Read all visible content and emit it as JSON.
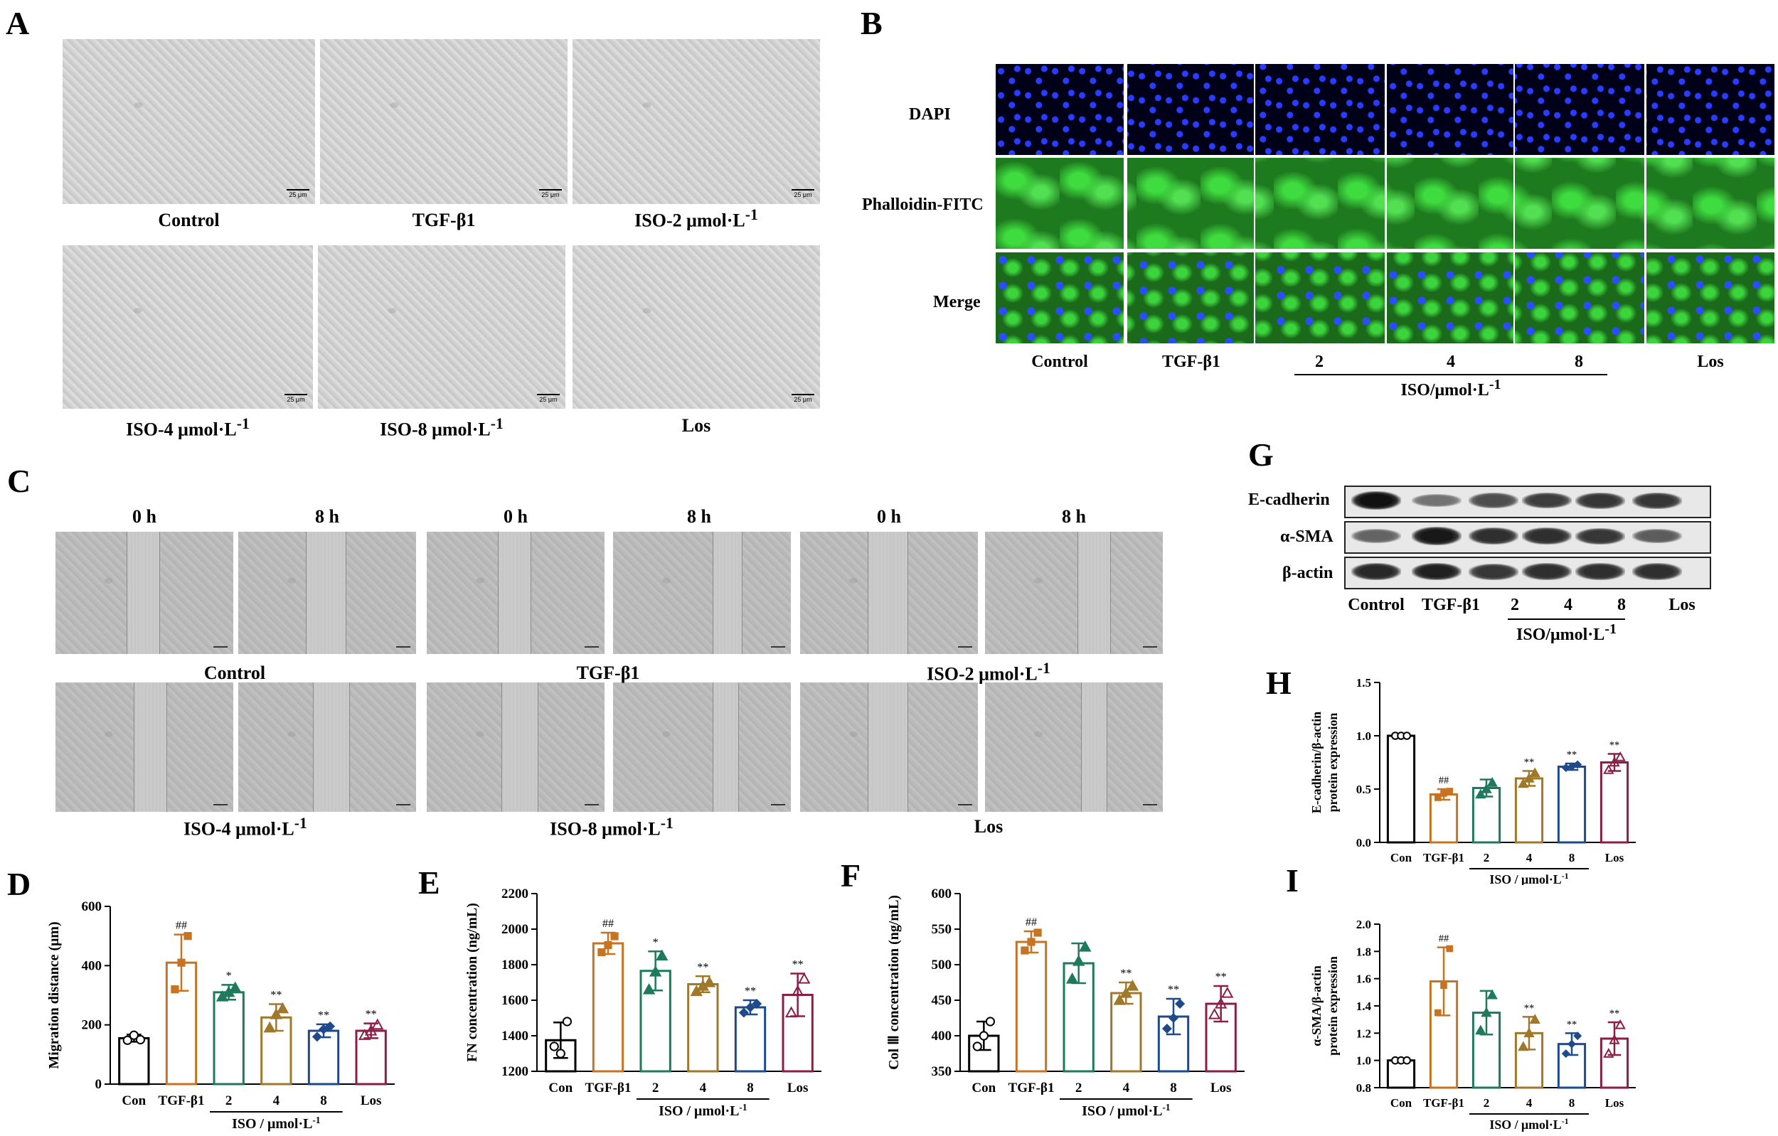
{
  "panels": {
    "A": "A",
    "B": "B",
    "C": "C",
    "D": "D",
    "E": "E",
    "F": "F",
    "G": "G",
    "H": "H",
    "I": "I"
  },
  "panelA": {
    "labels": [
      "Control",
      "TGF-β1",
      "ISO-2 μmol·L",
      "ISO-4 μmol·L",
      "ISO-8 μmol·L",
      "Los"
    ],
    "sup": "-1",
    "scalebar": "25 μm"
  },
  "panelB": {
    "rows": [
      "DAPI",
      "Phalloidin-FITC",
      "Merge"
    ],
    "cols": [
      "Control",
      "TGF-β1",
      "2",
      "4",
      "8",
      "Los"
    ],
    "group": "ISO/μmol·L",
    "sup": "-1"
  },
  "panelC": {
    "times": [
      "0 h",
      "8 h"
    ],
    "labels": [
      "Control",
      "TGF-β1",
      "ISO-2 μmol·L",
      "ISO-4 μmol·L",
      "ISO-8 μmol·L",
      "Los"
    ],
    "sup": "-1"
  },
  "panelG": {
    "proteins": [
      "E-cadherin",
      "α-SMA",
      "β-actin"
    ],
    "cols": [
      "Control",
      "TGF-β1",
      "2",
      "4",
      "8",
      "Los"
    ],
    "group": "ISO/μmol·L",
    "sup": "-1"
  },
  "colors": [
    "#000000",
    "#c87321",
    "#1e7a5a",
    "#a0782a",
    "#1e4a8c",
    "#8c1e46"
  ],
  "chart_data": [
    {
      "id": "D",
      "type": "bar",
      "categories": [
        "Con",
        "TGF-β1",
        "2",
        "4",
        "8",
        "Los"
      ],
      "values": [
        155,
        410,
        310,
        225,
        180,
        180
      ],
      "errors": [
        12,
        95,
        25,
        45,
        22,
        25
      ],
      "points": [
        [
          148,
          165,
          150
        ],
        [
          320,
          410,
          500
        ],
        [
          295,
          310,
          325
        ],
        [
          190,
          235,
          255
        ],
        [
          160,
          185,
          195
        ],
        [
          165,
          180,
          200
        ]
      ],
      "sig": [
        "",
        "##",
        "*",
        "**",
        "**",
        "**"
      ],
      "ylabel": "Migration distance (μm)",
      "ylim": [
        0,
        600
      ],
      "yticks": [
        "0",
        "200",
        "400",
        "600"
      ],
      "group": "ISO / μmol·L",
      "sup": "-1"
    },
    {
      "id": "E",
      "type": "bar",
      "categories": [
        "Con",
        "TGF-β1",
        "2",
        "4",
        "8",
        "Los"
      ],
      "values": [
        1375,
        1920,
        1765,
        1690,
        1560,
        1630
      ],
      "errors": [
        100,
        60,
        110,
        45,
        40,
        120
      ],
      "points": [
        [
          1340,
          1300,
          1480
        ],
        [
          1870,
          1910,
          1960
        ],
        [
          1660,
          1760,
          1850
        ],
        [
          1650,
          1680,
          1700
        ],
        [
          1530,
          1560,
          1580
        ],
        [
          1530,
          1650,
          1720
        ]
      ],
      "sig": [
        "",
        "##",
        "*",
        "**",
        "**",
        "**"
      ],
      "ylabel": "FN concentration (ng/mL)",
      "ylim": [
        1200,
        2200
      ],
      "yticks": [
        "1200",
        "1400",
        "1600",
        "1800",
        "2000",
        "2200"
      ],
      "group": "ISO / μmol·L",
      "sup": "-1"
    },
    {
      "id": "F",
      "type": "bar",
      "categories": [
        "Con",
        "TGF-β1",
        "2",
        "4",
        "8",
        "Los"
      ],
      "values": [
        400,
        532,
        502,
        460,
        427,
        445
      ],
      "errors": [
        20,
        15,
        28,
        15,
        25,
        25
      ],
      "points": [
        [
          385,
          400,
          420
        ],
        [
          520,
          532,
          545
        ],
        [
          480,
          505,
          525
        ],
        [
          450,
          460,
          470
        ],
        [
          410,
          425,
          445
        ],
        [
          430,
          445,
          460
        ]
      ],
      "sig": [
        "",
        "##",
        "",
        "**",
        "**",
        "**"
      ],
      "ylabel": "Col Ⅲ concentration (ng/mL)",
      "ylim": [
        350,
        600
      ],
      "yticks": [
        "350",
        "400",
        "450",
        "500",
        "550",
        "600"
      ],
      "group": "ISO / μmol·L",
      "sup": "-1"
    },
    {
      "id": "H",
      "type": "bar",
      "categories": [
        "Con",
        "TGF-β1",
        "2",
        "4",
        "8",
        "Los"
      ],
      "values": [
        1.0,
        0.45,
        0.51,
        0.6,
        0.71,
        0.75
      ],
      "errors": [
        0,
        0.05,
        0.08,
        0.07,
        0.03,
        0.08
      ],
      "points": [
        [
          1,
          1,
          1
        ],
        [
          0.42,
          0.46,
          0.48
        ],
        [
          0.45,
          0.5,
          0.56
        ],
        [
          0.55,
          0.6,
          0.65
        ],
        [
          0.7,
          0.71,
          0.73
        ],
        [
          0.68,
          0.75,
          0.8
        ]
      ],
      "sig": [
        "",
        "##",
        "",
        "**",
        "**",
        "**"
      ],
      "ylabel": "E-cadherin/β-actin protein expression",
      "ylim": [
        0,
        1.5
      ],
      "yticks": [
        "0.0",
        "0.5",
        "1.0",
        "1.5"
      ],
      "group": "ISO / μmol·L",
      "sup": "-1"
    },
    {
      "id": "I",
      "type": "bar",
      "categories": [
        "Con",
        "TGF-β1",
        "2",
        "4",
        "8",
        "Los"
      ],
      "values": [
        1.0,
        1.58,
        1.35,
        1.2,
        1.12,
        1.16
      ],
      "errors": [
        0,
        0.25,
        0.16,
        0.12,
        0.08,
        0.12
      ],
      "points": [
        [
          1,
          1,
          1
        ],
        [
          1.35,
          1.55,
          1.82
        ],
        [
          1.22,
          1.35,
          1.48
        ],
        [
          1.1,
          1.2,
          1.3
        ],
        [
          1.05,
          1.12,
          1.18
        ],
        [
          1.05,
          1.15,
          1.26
        ]
      ],
      "sig": [
        "",
        "##",
        "",
        "**",
        "**",
        "**"
      ],
      "ylabel": "α-SMA/β-actin protein expression",
      "ylim": [
        0.8,
        2.0
      ],
      "yticks": [
        "0.8",
        "1.0",
        "1.2",
        "1.4",
        "1.6",
        "1.8",
        "2.0"
      ],
      "group": "ISO / μmol·L",
      "sup": "-1"
    }
  ]
}
